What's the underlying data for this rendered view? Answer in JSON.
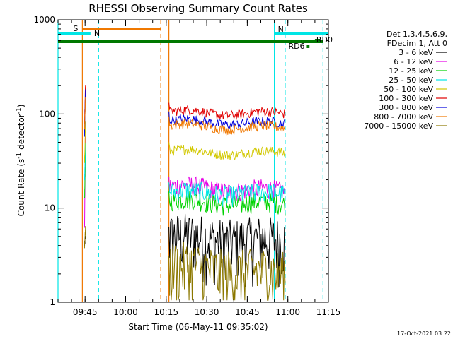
{
  "chart_data": {
    "type": "line",
    "title": "RHESSI Observing Summary Count Rates",
    "xlabel": "Start Time (06-May-11 09:35:02)",
    "ylabel_parts": [
      "Count Rate (s",
      "-1",
      " detector",
      "-1",
      ")"
    ],
    "ylabel": "Count Rate (s-1 detector-1)",
    "yscale": "log",
    "ylim": [
      1,
      1000
    ],
    "xlim": [
      "09:35",
      "11:15"
    ],
    "y_ticks": [
      {
        "value": 1,
        "label": "1"
      },
      {
        "value": 10,
        "label": "10"
      },
      {
        "value": 100,
        "label": "100"
      },
      {
        "value": 1000,
        "label": "1000"
      }
    ],
    "x_ticks": [
      {
        "value": "09:45",
        "label": "09:45"
      },
      {
        "value": "10:00",
        "label": "10:00"
      },
      {
        "value": "10:15",
        "label": "10:15"
      },
      {
        "value": "10:30",
        "label": "10:30"
      },
      {
        "value": "10:45",
        "label": "10:45"
      },
      {
        "value": "11:00",
        "label": "11:00"
      },
      {
        "value": "11:15",
        "label": "11:15"
      }
    ],
    "legend": {
      "placement": "right",
      "header": [
        "Det 1,3,4,5,6,9,",
        "FDecim 1, Att 0"
      ],
      "entries": [
        {
          "label": "3 - 6 keV",
          "color": "#000000"
        },
        {
          "label": "6 - 12 keV",
          "color": "#e600e6"
        },
        {
          "label": "12 - 25 keV",
          "color": "#00d200"
        },
        {
          "label": "25 - 50 keV",
          "color": "#00e5e5"
        },
        {
          "label": "50 - 100 keV",
          "color": "#d2c800"
        },
        {
          "label": "100 - 300 keV",
          "color": "#e00000"
        },
        {
          "label": "300 - 800 keV",
          "color": "#0000dc"
        },
        {
          "label": "800 - 7000 keV",
          "color": "#f07800"
        },
        {
          "label": "7000 - 15000 keV",
          "color": "#8c7800"
        }
      ]
    },
    "status_bars": [
      {
        "label": "S",
        "color": "#f07800",
        "start": "09:44",
        "end": "10:13"
      },
      {
        "label": "N",
        "color": "#00e5e5",
        "start": "09:35",
        "end": "09:47"
      },
      {
        "label": "N",
        "color": "#00e5e5",
        "start": "10:55",
        "end": "11:15"
      },
      {
        "label": "",
        "color": "#007800",
        "start": "09:35",
        "end": "11:13"
      },
      {
        "label": "RD0",
        "color": "#007800",
        "start": "11:10",
        "end": "11:12"
      },
      {
        "label": "RD6",
        "color": "#007800",
        "start": "11:07",
        "end": "11:08"
      }
    ],
    "vertical_markers": [
      {
        "time": "09:35",
        "color": "#00e5e5",
        "style": "solid"
      },
      {
        "time": "09:44",
        "color": "#f07800",
        "style": "solid"
      },
      {
        "time": "09:50",
        "color": "#00e5e5",
        "style": "dashed"
      },
      {
        "time": "10:13",
        "color": "#f07800",
        "style": "dashed"
      },
      {
        "time": "10:16",
        "color": "#f07800",
        "style": "solid"
      },
      {
        "time": "10:55",
        "color": "#00e5e5",
        "style": "solid"
      },
      {
        "time": "10:59",
        "color": "#00e5e5",
        "style": "dashed"
      },
      {
        "time": "11:13",
        "color": "#00e5e5",
        "style": "dashed"
      }
    ],
    "segments": [
      {
        "start": "09:44",
        "end": "09:47"
      },
      {
        "start": "10:16",
        "end": "10:59"
      }
    ],
    "series": [
      {
        "name": "3 - 6 keV",
        "color": "#000000",
        "y_start": 4,
        "y_end": 5,
        "level": 5,
        "level_end": 4.5
      },
      {
        "name": "6 - 12 keV",
        "color": "#e600e6",
        "y_start": 6,
        "y_end": 60,
        "level": 17,
        "level_end": 15
      },
      {
        "name": "12 - 25 keV",
        "color": "#00d200",
        "y_start": 12,
        "y_end": 40,
        "level": 12,
        "level_end": 11
      },
      {
        "name": "25 - 50 keV",
        "color": "#00e5e5",
        "y_start": 20,
        "y_end": 50,
        "level": 15,
        "level_end": 14
      },
      {
        "name": "50 - 100 keV",
        "color": "#d2c800",
        "y_start": 30,
        "y_end": 80,
        "level": 40,
        "level_end": 38
      },
      {
        "name": "100 - 300 keV",
        "color": "#e00000",
        "y_start": 80,
        "y_end": 210,
        "level": 105,
        "level_end": 100
      },
      {
        "name": "300 - 800 keV",
        "color": "#0000dc",
        "y_start": 60,
        "y_end": 180,
        "level": 85,
        "level_end": 78
      },
      {
        "name": "800 - 7000 keV",
        "color": "#f07800",
        "y_start": 70,
        "y_end": 150,
        "level": 75,
        "level_end": 70
      },
      {
        "name": "7000 - 15000 keV",
        "color": "#8c7800",
        "y_start": 4,
        "y_end": 6,
        "level": 2.5,
        "level_end": 2
      }
    ],
    "footer_timestamp": "17-Oct-2021 03:22"
  }
}
